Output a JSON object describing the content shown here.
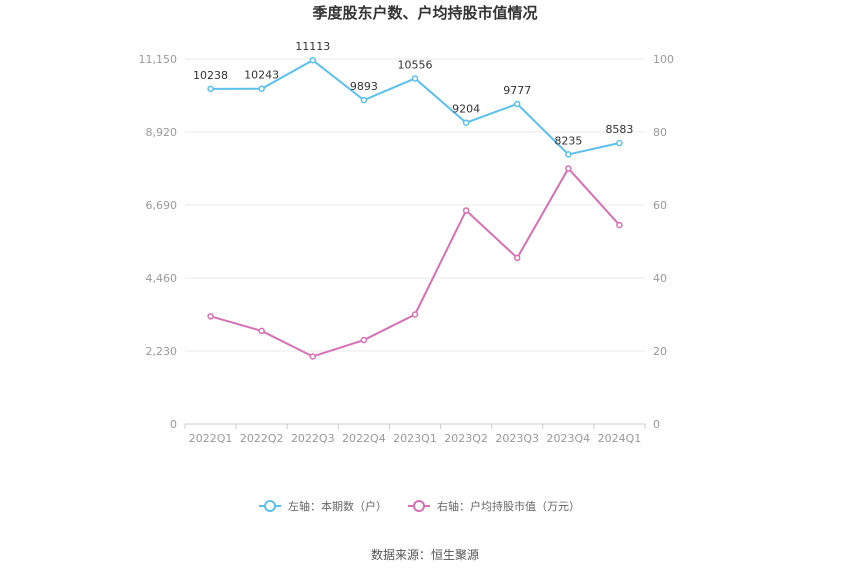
{
  "chart_data": {
    "type": "line",
    "title": "季度股东户数、户均持股市值情况",
    "categories": [
      "2022Q1",
      "2022Q2",
      "2022Q3",
      "2022Q4",
      "2023Q1",
      "2023Q2",
      "2023Q3",
      "2023Q4",
      "2024Q1"
    ],
    "left_axis": {
      "ylim": [
        0,
        11150
      ],
      "ticks": [
        "0",
        "2,230",
        "4,460",
        "6,690",
        "8,920",
        "11,150"
      ]
    },
    "right_axis": {
      "ylim": [
        0,
        100
      ],
      "ticks": [
        "0",
        "20",
        "40",
        "60",
        "80",
        "100"
      ]
    },
    "series": [
      {
        "name": "左轴：本期数（户）",
        "axis": "left",
        "color": "#5bc0eb",
        "values": [
          10238,
          10243,
          11113,
          9893,
          10556,
          9204,
          9777,
          8235,
          8583
        ],
        "labels": [
          "10238",
          "10243",
          "11113",
          "9893",
          "10556",
          "9204",
          "9777",
          "8235",
          "8583"
        ]
      },
      {
        "name": "右轴：户均持股市值（万元）",
        "axis": "right",
        "color": "#d670b4",
        "values": [
          29.5,
          25.5,
          18.5,
          23.0,
          30.0,
          58.5,
          45.5,
          70.0,
          54.5
        ]
      }
    ],
    "grid": "horizontal",
    "legend_position": "bottom"
  },
  "source": "数据来源：恒生聚源"
}
